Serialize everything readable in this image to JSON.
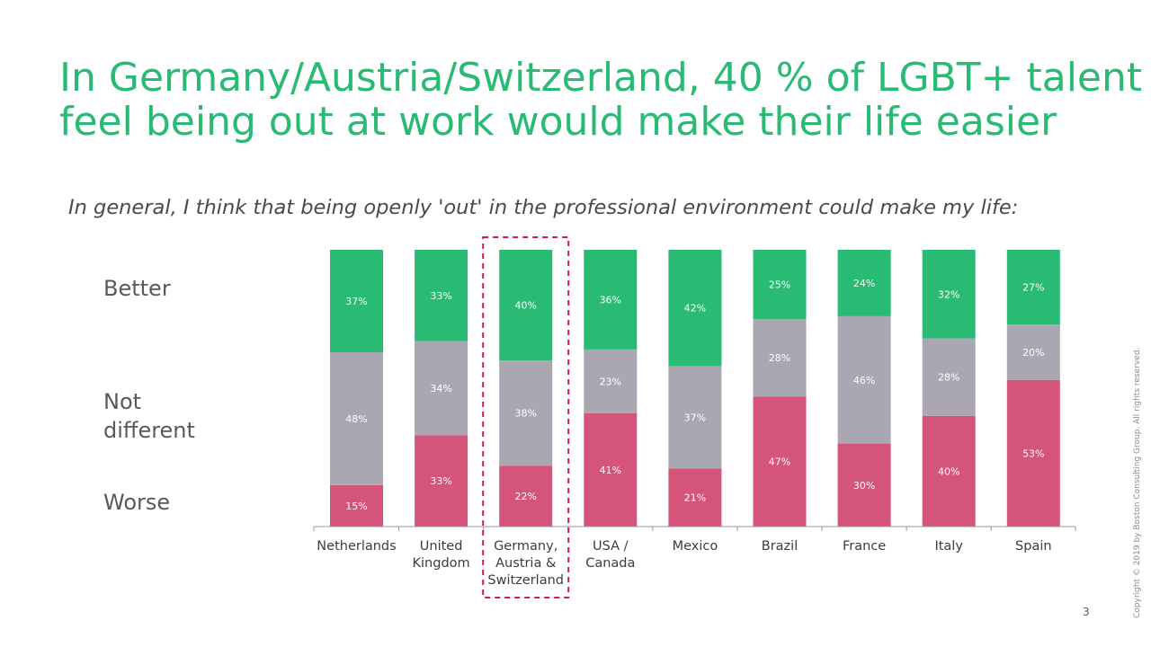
{
  "title_lines": [
    "In Germany/Austria/Switzerland, 40 % of LGBT+ talent",
    "feel being out at work would make their life easier"
  ],
  "subtitle": "In general, I think that being openly 'out' in the professional environment could make my life:",
  "row_labels": {
    "better": "Better",
    "not_different": [
      "Not",
      "different"
    ],
    "worse": "Worse"
  },
  "colors": {
    "better": "#29ba74",
    "not_different": "#aba7b2",
    "worse": "#d4547a",
    "highlight": "#d01c4a",
    "title": "#29ba74"
  },
  "chart_data": {
    "type": "bar",
    "stacked": true,
    "normalized": true,
    "categories": [
      [
        "Netherlands"
      ],
      [
        "United",
        "Kingdom"
      ],
      [
        "Germany,",
        "Austria &",
        "Switzerland"
      ],
      [
        "USA /",
        "Canada"
      ],
      [
        "Mexico"
      ],
      [
        "Brazil"
      ],
      [
        "France"
      ],
      [
        "Italy"
      ],
      [
        "Spain"
      ]
    ],
    "series": [
      {
        "name": "Worse",
        "color": "#d4547a",
        "values": [
          15,
          33,
          22,
          41,
          21,
          47,
          30,
          40,
          53
        ]
      },
      {
        "name": "Not different",
        "color": "#aba7b2",
        "values": [
          48,
          34,
          38,
          23,
          37,
          28,
          46,
          28,
          20
        ]
      },
      {
        "name": "Better",
        "color": "#29ba74",
        "values": [
          37,
          33,
          40,
          36,
          42,
          25,
          24,
          32,
          27
        ]
      }
    ],
    "value_suffix": "%",
    "highlighted_category_index": 2
  },
  "copyright": "Copyright © 2019 by Boston Consulting Group. All rights reserved.",
  "page_number": "3"
}
